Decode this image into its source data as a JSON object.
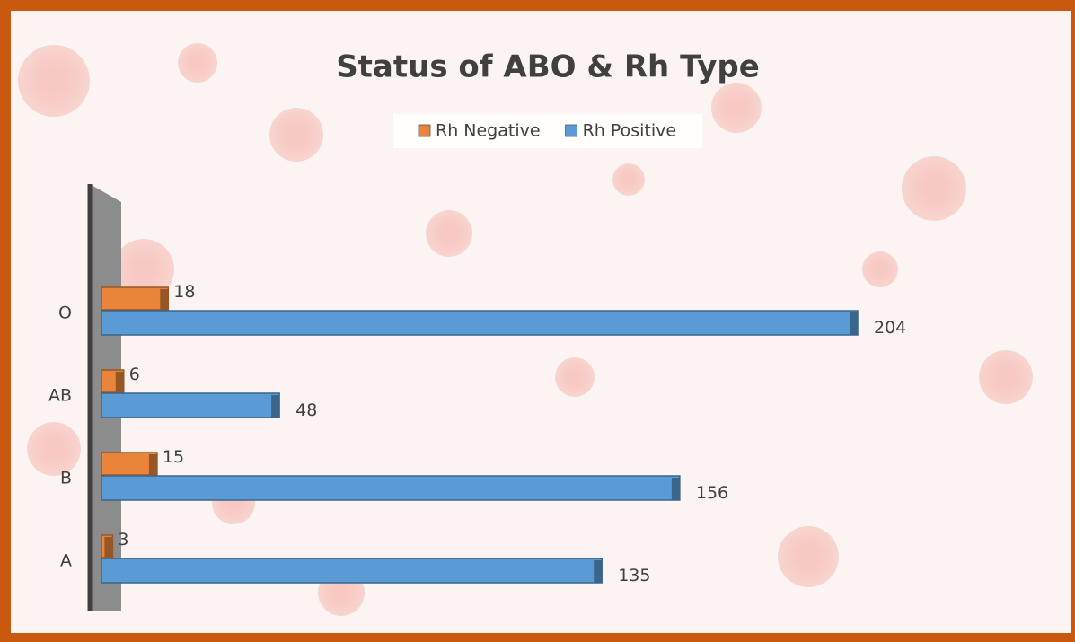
{
  "chart_data": {
    "type": "bar",
    "orientation": "horizontal",
    "title": "Status of ABO & Rh Type",
    "categories": [
      "A",
      "B",
      "AB",
      "O"
    ],
    "series": [
      {
        "name": "Rh Negative",
        "color": "#e9843a",
        "values": [
          3,
          15,
          6,
          18
        ]
      },
      {
        "name": "Rh Positive",
        "color": "#5b9bd5",
        "values": [
          135,
          156,
          48,
          204
        ]
      }
    ],
    "legend": "top"
  }
}
